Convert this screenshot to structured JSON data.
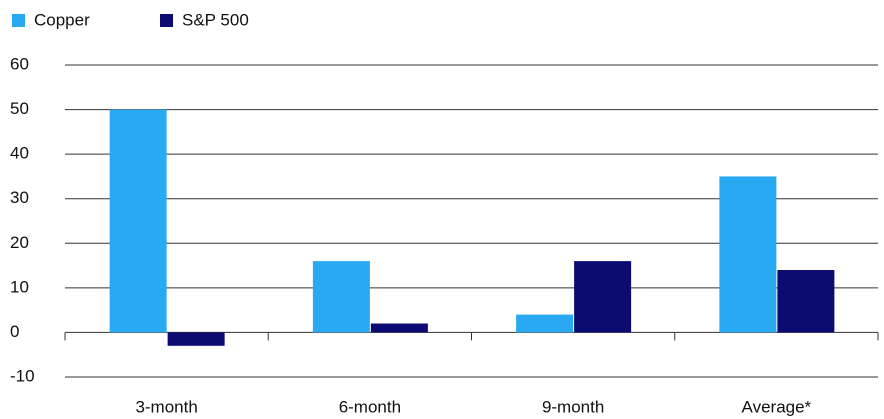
{
  "chart_data": {
    "type": "bar",
    "categories": [
      "3-month",
      "6-month",
      "9-month",
      "Average*"
    ],
    "series": [
      {
        "name": "Copper",
        "color": "#29a9f1",
        "values": [
          50,
          16,
          4,
          35
        ]
      },
      {
        "name": "S&P 500",
        "color": "#0b0b72",
        "values": [
          -3,
          2,
          16,
          14
        ]
      }
    ],
    "ylim": [
      -10,
      60
    ],
    "yticks": [
      -10,
      0,
      10,
      20,
      30,
      40,
      50,
      60
    ],
    "grid": true,
    "legend": "top-left"
  }
}
